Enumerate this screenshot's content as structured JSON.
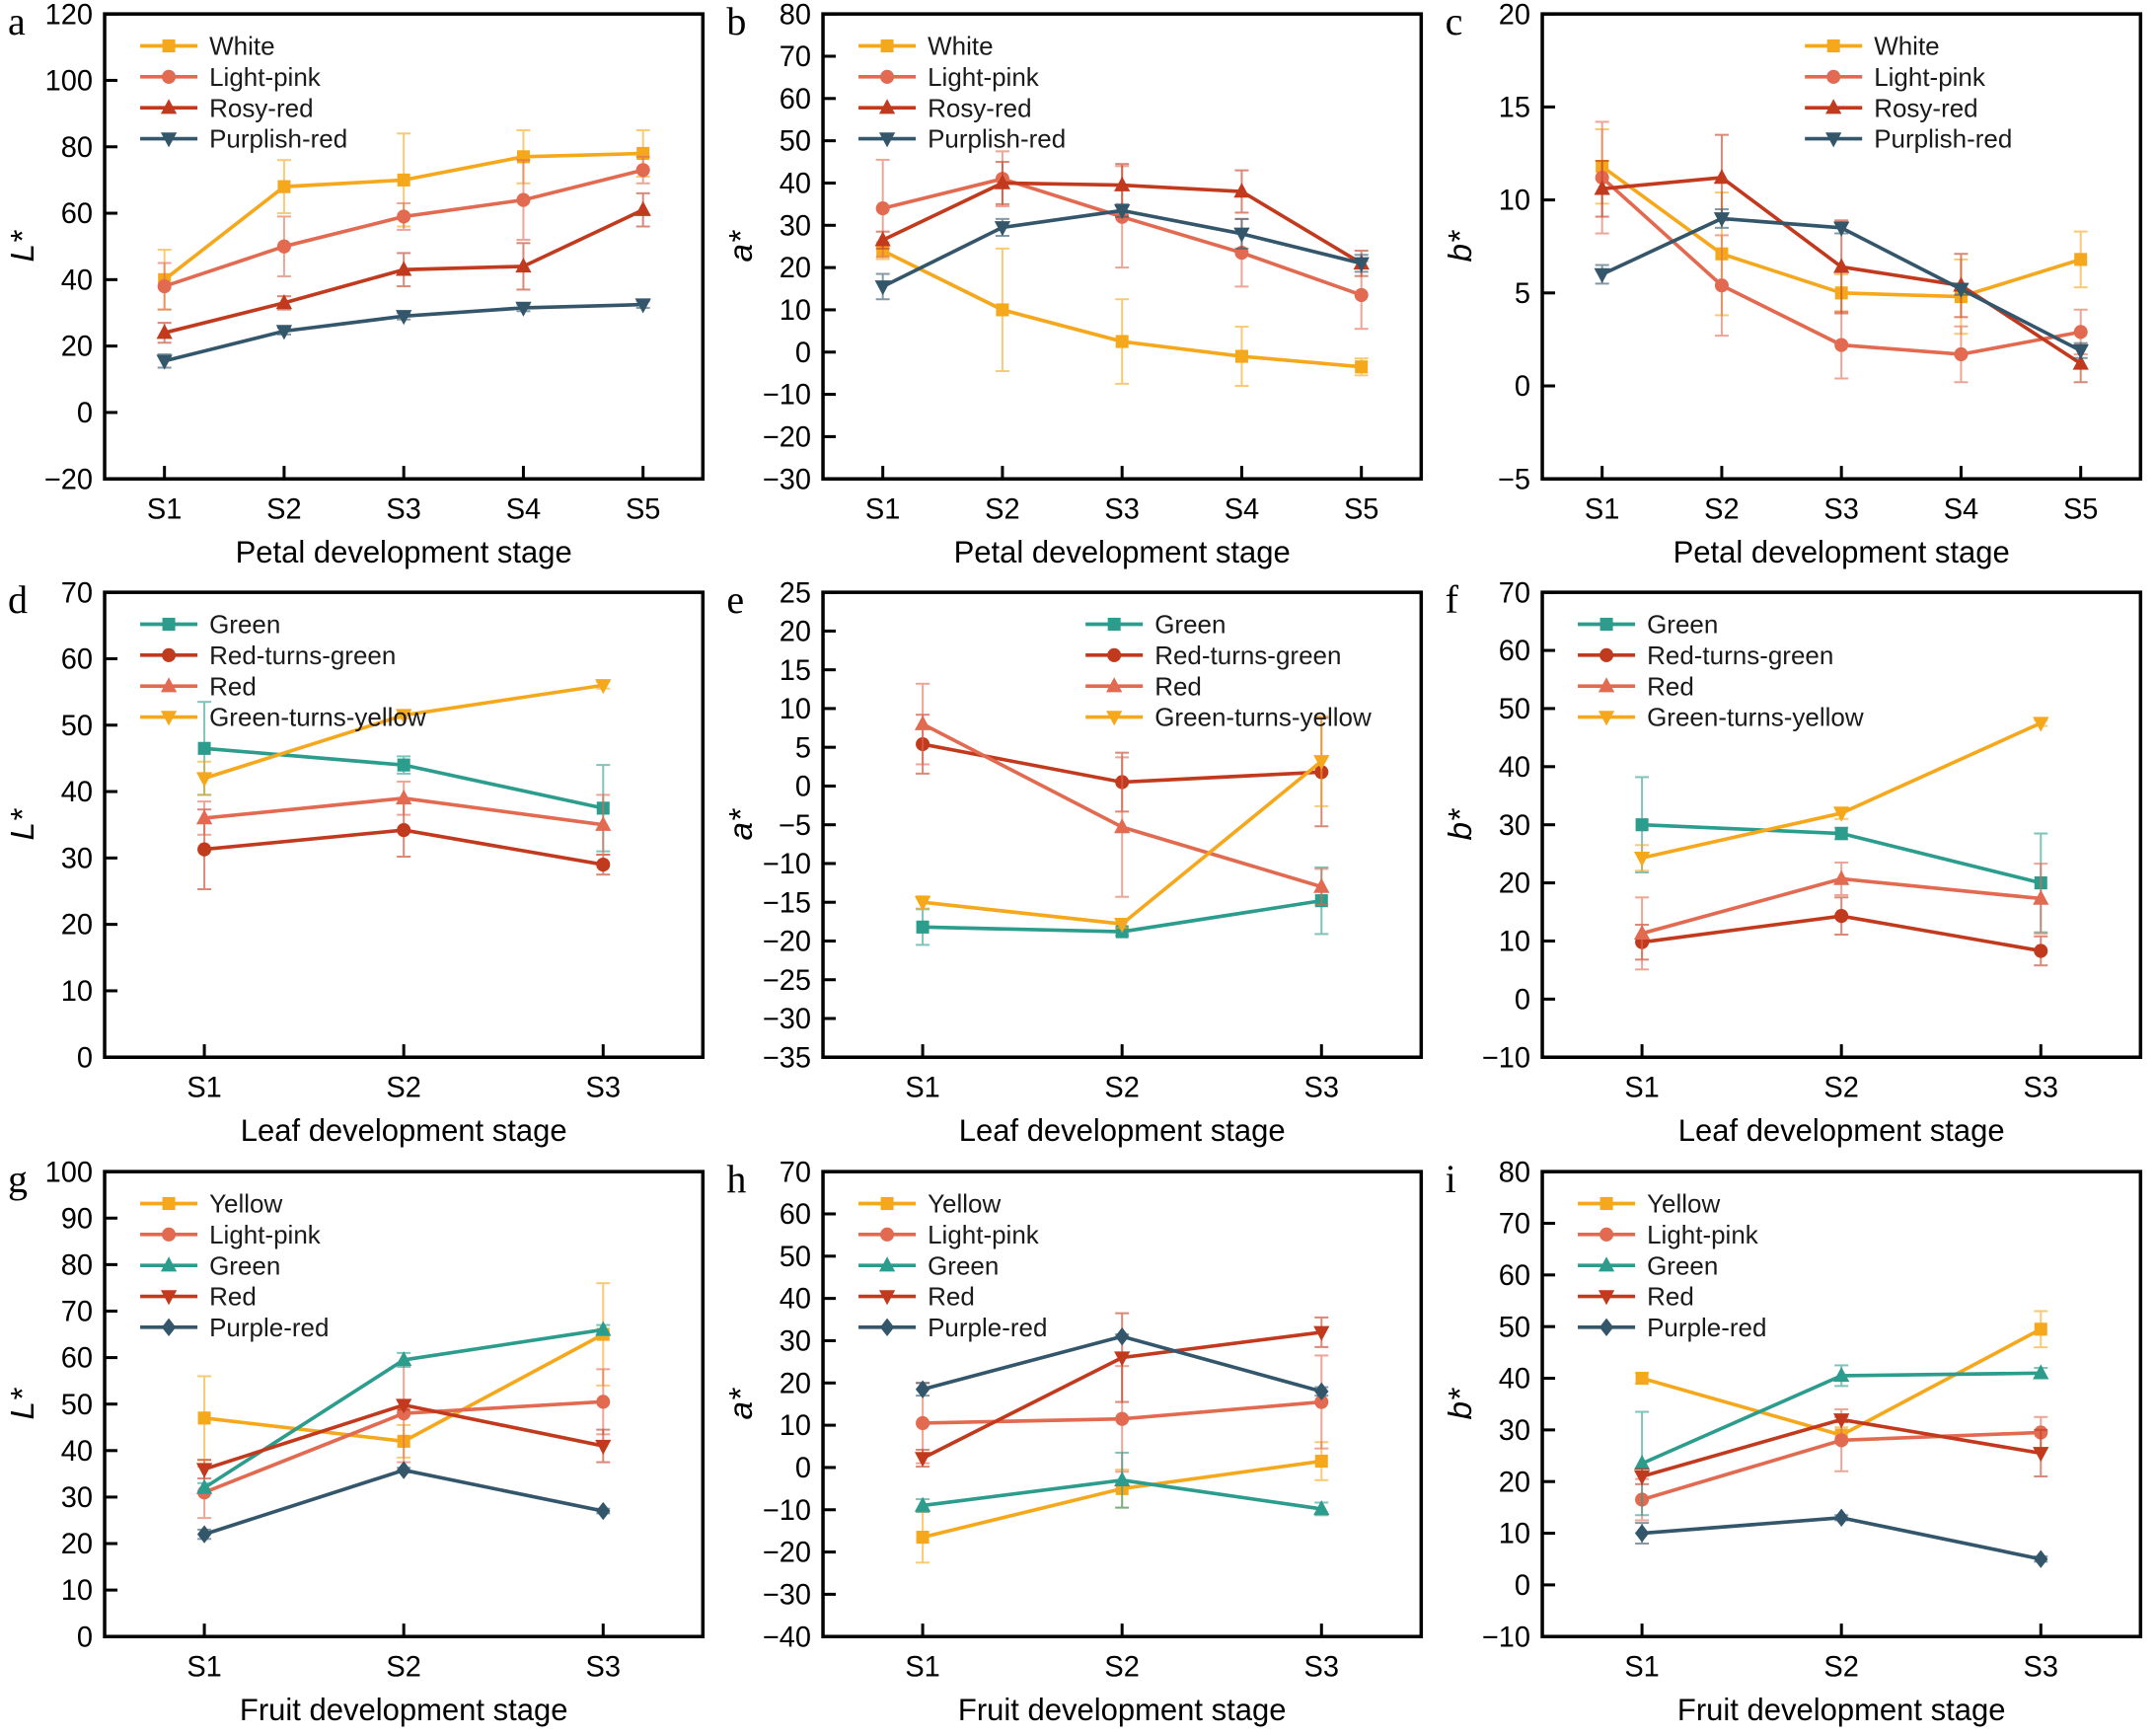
{
  "figure": {
    "description": "Colorimetric parameters (L*, a*, b*) during petal, leaf and fruit development stages",
    "palette": {
      "amber": "#F6A81C",
      "salmon": "#E26A51",
      "brick": "#C23A1E",
      "slate": "#34566B",
      "teal": "#2C9C8C"
    }
  },
  "chart_data": [
    {
      "letter": "a",
      "type": "line",
      "xlabel": "Petal development stage",
      "ylabel": "L*",
      "ylim": [
        -20,
        120
      ],
      "ytick_step": 20,
      "categories": [
        "S1",
        "S2",
        "S3",
        "S4",
        "S5"
      ],
      "legend_position": "top-left",
      "grid": false,
      "series": [
        {
          "name": "White",
          "color": "#F6A81C",
          "marker": "square",
          "values": [
            40,
            68,
            70,
            77,
            78
          ],
          "errors": [
            9,
            8,
            14,
            8,
            7
          ]
        },
        {
          "name": "Light-pink",
          "color": "#E26A51",
          "marker": "circle",
          "values": [
            38,
            50,
            59,
            64,
            73
          ],
          "errors": [
            7,
            9,
            4,
            12,
            4
          ]
        },
        {
          "name": "Rosy-red",
          "color": "#C23A1E",
          "marker": "triangle-up",
          "values": [
            24,
            33,
            43,
            44,
            61
          ],
          "errors": [
            3,
            2,
            5,
            7,
            5
          ]
        },
        {
          "name": "Purplish-red",
          "color": "#34566B",
          "marker": "triangle-down",
          "values": [
            15.5,
            24.5,
            29,
            31.5,
            32.5
          ],
          "errors": [
            2,
            1,
            1,
            1,
            1
          ]
        }
      ]
    },
    {
      "letter": "b",
      "type": "line",
      "xlabel": "Petal development stage",
      "ylabel": "a*",
      "ylim": [
        -30,
        80
      ],
      "ytick_step": 10,
      "categories": [
        "S1",
        "S2",
        "S3",
        "S4",
        "S5"
      ],
      "legend_position": "top-left",
      "grid": false,
      "series": [
        {
          "name": "White",
          "color": "#F6A81C",
          "marker": "square",
          "values": [
            24,
            10,
            2.5,
            -1,
            -3.5
          ],
          "errors": [
            2,
            14.5,
            10,
            7,
            2
          ]
        },
        {
          "name": "Light-pink",
          "color": "#E26A51",
          "marker": "circle",
          "values": [
            34,
            41,
            32,
            23.5,
            13.5
          ],
          "errors": [
            11.5,
            6.5,
            12,
            8,
            8
          ]
        },
        {
          "name": "Rosy-red",
          "color": "#C23A1E",
          "marker": "triangle-up",
          "values": [
            26.5,
            40,
            39.5,
            38,
            21
          ],
          "errors": [
            2,
            5,
            5,
            5,
            3
          ]
        },
        {
          "name": "Purplish-red",
          "color": "#34566B",
          "marker": "triangle-down",
          "values": [
            15.5,
            29.5,
            33.5,
            28,
            21
          ],
          "errors": [
            3,
            2,
            1.5,
            3.5,
            2
          ]
        }
      ]
    },
    {
      "letter": "c",
      "type": "line",
      "xlabel": "Petal development stage",
      "ylabel": "b*",
      "ylim": [
        -5,
        20
      ],
      "ytick_step": 5,
      "categories": [
        "S1",
        "S2",
        "S3",
        "S4",
        "S5"
      ],
      "legend_position": "top-right",
      "grid": false,
      "series": [
        {
          "name": "White",
          "color": "#F6A81C",
          "marker": "square",
          "values": [
            11.8,
            7.1,
            5.0,
            4.8,
            6.8
          ],
          "errors": [
            2,
            3.3,
            1,
            2,
            1.5
          ]
        },
        {
          "name": "Light-pink",
          "color": "#E26A51",
          "marker": "circle",
          "values": [
            11.2,
            5.4,
            2.2,
            1.7,
            2.9
          ],
          "errors": [
            3,
            2.7,
            1.8,
            1.5,
            1.2
          ]
        },
        {
          "name": "Rosy-red",
          "color": "#C23A1E",
          "marker": "triangle-up",
          "values": [
            10.6,
            11.2,
            6.4,
            5.4,
            1.2
          ],
          "errors": [
            1.5,
            2.3,
            2.5,
            1.7,
            1
          ]
        },
        {
          "name": "Purplish-red",
          "color": "#34566B",
          "marker": "triangle-down",
          "values": [
            6.0,
            9.0,
            8.5,
            5.2,
            1.9
          ],
          "errors": [
            0.5,
            0.5,
            0.3,
            0.3,
            0.4
          ]
        }
      ]
    },
    {
      "letter": "d",
      "type": "line",
      "xlabel": "Leaf development stage",
      "ylabel": "L*",
      "ylim": [
        0,
        70
      ],
      "ytick_step": 10,
      "categories": [
        "S1",
        "S2",
        "S3"
      ],
      "legend_position": "top-left",
      "grid": false,
      "series": [
        {
          "name": "Green",
          "color": "#2C9C8C",
          "marker": "square",
          "values": [
            46.5,
            44,
            37.5
          ],
          "errors": [
            7,
            1.3,
            6.5
          ]
        },
        {
          "name": "Red-turns-green",
          "color": "#C23A1E",
          "marker": "circle",
          "values": [
            31.3,
            34.2,
            29
          ],
          "errors": [
            6,
            4,
            1.5
          ]
        },
        {
          "name": "Red",
          "color": "#E26A51",
          "marker": "triangle-up",
          "values": [
            36,
            39,
            35
          ],
          "errors": [
            2.5,
            2.5,
            4.5
          ]
        },
        {
          "name": "Green-turns-yellow",
          "color": "#F6A81C",
          "marker": "triangle-down",
          "values": [
            42,
            51.5,
            56
          ],
          "errors": [
            2.5,
            0.5,
            0.5
          ]
        }
      ]
    },
    {
      "letter": "e",
      "type": "line",
      "xlabel": "Leaf development stage",
      "ylabel": "a*",
      "ylim": [
        -35,
        25
      ],
      "ytick_step": 5,
      "categories": [
        "S1",
        "S2",
        "S3"
      ],
      "legend_position": "top-right",
      "grid": false,
      "series": [
        {
          "name": "Green",
          "color": "#2C9C8C",
          "marker": "square",
          "values": [
            -18.2,
            -18.8,
            -14.8
          ],
          "errors": [
            2.3,
            0.5,
            4.3
          ]
        },
        {
          "name": "Red-turns-green",
          "color": "#C23A1E",
          "marker": "circle",
          "values": [
            5.4,
            0.5,
            1.8
          ],
          "errors": [
            3.8,
            3.8,
            7
          ]
        },
        {
          "name": "Red",
          "color": "#E26A51",
          "marker": "triangle-up",
          "values": [
            8,
            -5.3,
            -13
          ],
          "errors": [
            5.2,
            9,
            2.3
          ]
        },
        {
          "name": "Green-turns-yellow",
          "color": "#F6A81C",
          "marker": "triangle-down",
          "values": [
            -15,
            -17.8,
            3.2
          ],
          "errors": [
            0.8,
            0.5,
            5.8
          ]
        }
      ]
    },
    {
      "letter": "f",
      "type": "line",
      "xlabel": "Leaf development stage",
      "ylabel": "b*",
      "ylim": [
        -10,
        70
      ],
      "ytick_step": 10,
      "categories": [
        "S1",
        "S2",
        "S3"
      ],
      "legend_position": "top-left",
      "grid": false,
      "series": [
        {
          "name": "Green",
          "color": "#2C9C8C",
          "marker": "square",
          "values": [
            30,
            28.5,
            20
          ],
          "errors": [
            8.2,
            1,
            8.5
          ]
        },
        {
          "name": "Red-turns-green",
          "color": "#C23A1E",
          "marker": "circle",
          "values": [
            9.8,
            14.3,
            8.3
          ],
          "errors": [
            3,
            3.2,
            2.5
          ]
        },
        {
          "name": "Red",
          "color": "#E26A51",
          "marker": "triangle-up",
          "values": [
            11.3,
            20.7,
            17.3
          ],
          "errors": [
            6.2,
            2.8,
            6
          ]
        },
        {
          "name": "Green-turns-yellow",
          "color": "#F6A81C",
          "marker": "triangle-down",
          "values": [
            24.3,
            32,
            47.5
          ],
          "errors": [
            2.2,
            1,
            0.5
          ]
        }
      ]
    },
    {
      "letter": "g",
      "type": "line",
      "xlabel": "Fruit development stage",
      "ylabel": "L*",
      "ylim": [
        0,
        100
      ],
      "ytick_step": 10,
      "categories": [
        "S1",
        "S2",
        "S3"
      ],
      "legend_position": "top-left",
      "grid": false,
      "series": [
        {
          "name": "Yellow",
          "color": "#F6A81C",
          "marker": "square",
          "values": [
            47,
            42,
            65
          ],
          "errors": [
            9,
            3.5,
            11
          ]
        },
        {
          "name": "Light-pink",
          "color": "#E26A51",
          "marker": "circle",
          "values": [
            31,
            48,
            50.5
          ],
          "errors": [
            5.5,
            10.5,
            7
          ]
        },
        {
          "name": "Green",
          "color": "#2C9C8C",
          "marker": "triangle-up",
          "values": [
            32,
            59.5,
            66
          ],
          "errors": [
            1,
            1.5,
            1
          ]
        },
        {
          "name": "Red",
          "color": "#C23A1E",
          "marker": "triangle-down",
          "values": [
            36,
            49.8,
            41
          ],
          "errors": [
            2,
            1,
            3.5
          ]
        },
        {
          "name": "Purple-red",
          "color": "#34566B",
          "marker": "diamond",
          "values": [
            22,
            35.8,
            27
          ],
          "errors": [
            1,
            0.5,
            0.5
          ]
        }
      ]
    },
    {
      "letter": "h",
      "type": "line",
      "xlabel": "Fruit development stage",
      "ylabel": "a*",
      "ylim": [
        -40,
        70
      ],
      "ytick_step": 10,
      "categories": [
        "S1",
        "S2",
        "S3"
      ],
      "legend_position": "top-left",
      "grid": false,
      "series": [
        {
          "name": "Yellow",
          "color": "#F6A81C",
          "marker": "square",
          "values": [
            -16.5,
            -5,
            1.5
          ],
          "errors": [
            6,
            4.5,
            4.5
          ]
        },
        {
          "name": "Light-pink",
          "color": "#E26A51",
          "marker": "circle",
          "values": [
            10.5,
            11.5,
            15.5
          ],
          "errors": [
            9.5,
            12.5,
            11
          ]
        },
        {
          "name": "Green",
          "color": "#2C9C8C",
          "marker": "triangle-up",
          "values": [
            -9,
            -3,
            -9.8
          ],
          "errors": [
            1.5,
            6.5,
            1.5
          ]
        },
        {
          "name": "Red",
          "color": "#C23A1E",
          "marker": "triangle-down",
          "values": [
            2.2,
            26,
            32
          ],
          "errors": [
            2,
            10.5,
            3.5
          ]
        },
        {
          "name": "Purple-red",
          "color": "#34566B",
          "marker": "diamond",
          "values": [
            18.5,
            31,
            18
          ],
          "errors": [
            1.5,
            0.5,
            1
          ]
        }
      ]
    },
    {
      "letter": "i",
      "type": "line",
      "xlabel": "Fruit development stage",
      "ylabel": "b*",
      "ylim": [
        -10,
        80
      ],
      "ytick_step": 10,
      "categories": [
        "S1",
        "S2",
        "S3"
      ],
      "legend_position": "top-left",
      "grid": false,
      "series": [
        {
          "name": "Yellow",
          "color": "#F6A81C",
          "marker": "square",
          "values": [
            40,
            29,
            49.5
          ],
          "errors": [
            1,
            1.5,
            3.5
          ]
        },
        {
          "name": "Light-pink",
          "color": "#E26A51",
          "marker": "circle",
          "values": [
            16.5,
            28,
            29.5
          ],
          "errors": [
            4,
            6,
            3
          ]
        },
        {
          "name": "Green",
          "color": "#2C9C8C",
          "marker": "triangle-up",
          "values": [
            23.5,
            40.5,
            41
          ],
          "errors": [
            10,
            2,
            1
          ]
        },
        {
          "name": "Red",
          "color": "#C23A1E",
          "marker": "triangle-down",
          "values": [
            21,
            32,
            25.5
          ],
          "errors": [
            1.5,
            0.5,
            4.5
          ]
        },
        {
          "name": "Purple-red",
          "color": "#34566B",
          "marker": "diamond",
          "values": [
            10,
            13,
            5
          ],
          "errors": [
            2,
            0.5,
            0.5
          ]
        }
      ]
    }
  ]
}
